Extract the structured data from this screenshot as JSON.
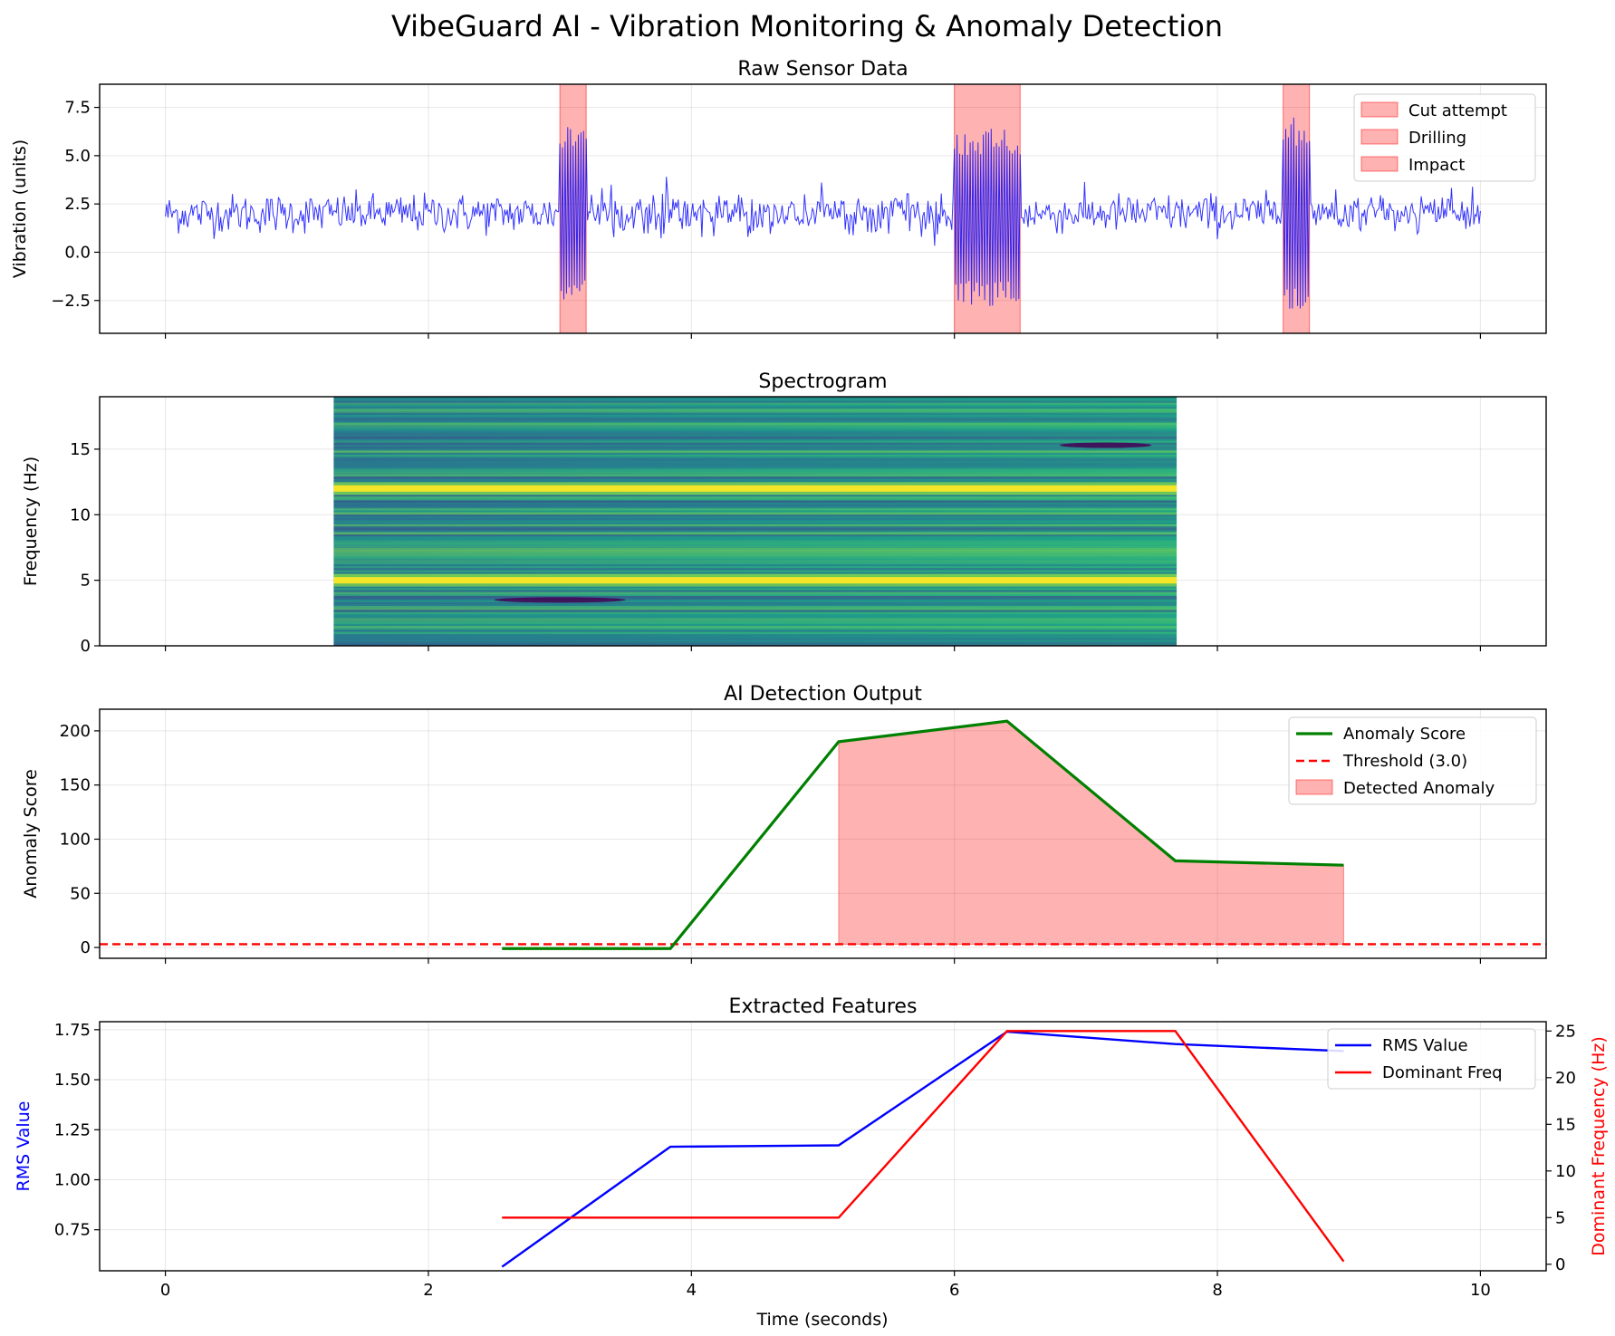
{
  "figure": {
    "suptitle": "VibeGuard AI - Vibration Monitoring & Anomaly Detection",
    "xlabel": "Time (seconds)",
    "xticks": [
      0,
      2,
      4,
      6,
      8,
      10
    ],
    "xlim": [
      -0.5,
      10.5
    ],
    "grid": true
  },
  "chart_data": [
    {
      "type": "line",
      "title": "Raw Sensor Data",
      "ylabel": "Vibration (units)",
      "ylim": [
        -4.2,
        8.7
      ],
      "yticks": [
        -2.5,
        0.0,
        2.5,
        5.0,
        7.5
      ],
      "ytick_labels": [
        "−2.5",
        "0.0",
        "2.5",
        "5.0",
        "7.5"
      ],
      "series": [
        {
          "description": "noisy baseline ~2 units, sampled 0-10 s",
          "color": "#0000ff",
          "x_start": 0,
          "x_end": 10,
          "baseline_mean": 2.0,
          "baseline_spread": 0.5,
          "bursts": [
            {
              "start": 3.0,
              "end": 3.2,
              "amplitude": 4.5,
              "center": 2.0
            },
            {
              "start": 6.0,
              "end": 6.5,
              "amplitude": 4.6,
              "center": 1.8
            },
            {
              "start": 8.5,
              "end": 8.7,
              "amplitude": 5.0,
              "center": 2.0
            }
          ]
        }
      ],
      "shaded_regions": [
        {
          "label": "Cut attempt",
          "start": 3.0,
          "end": 3.2,
          "color": "#ff0000",
          "alpha": 0.3
        },
        {
          "label": "Drilling",
          "start": 6.0,
          "end": 6.5,
          "color": "#ff0000",
          "alpha": 0.3
        },
        {
          "label": "Impact",
          "start": 8.5,
          "end": 8.7,
          "color": "#ff0000",
          "alpha": 0.3
        }
      ],
      "legend": {
        "position": "upper right",
        "entries": [
          "Cut attempt",
          "Drilling",
          "Impact"
        ]
      }
    },
    {
      "type": "heatmap",
      "title": "Spectrogram",
      "ylabel": "Frequency (Hz)",
      "ylim": [
        0,
        19
      ],
      "yticks": [
        0,
        5,
        10,
        15
      ],
      "ytick_labels": [
        "0",
        "5",
        "10",
        "15"
      ],
      "x_extent": [
        1.28,
        7.69
      ],
      "colormap": "viridis",
      "bright_bands_hz": [
        5.0,
        12.0
      ],
      "dark_spots": [
        {
          "freq": 15.3,
          "x_start": 6.8,
          "x_end": 7.5
        },
        {
          "freq": 3.5,
          "x_start": 2.5,
          "x_end": 3.5
        }
      ]
    },
    {
      "type": "line",
      "title": "AI Detection Output",
      "ylabel": "Anomaly Score",
      "ylim": [
        -10,
        220
      ],
      "yticks": [
        0,
        50,
        100,
        150,
        200
      ],
      "ytick_labels": [
        "0",
        "50",
        "100",
        "150",
        "200"
      ],
      "series": [
        {
          "name": "Anomaly Score",
          "color": "#008000",
          "x": [
            2.56,
            3.84,
            5.12,
            6.4,
            7.68,
            8.96
          ],
          "y": [
            -1,
            -1,
            190,
            209,
            80,
            76
          ]
        }
      ],
      "threshold": {
        "name": "Threshold (3.0)",
        "value": 3.0,
        "color": "#ff0000"
      },
      "fill": {
        "name": "Detected Anomaly",
        "x": [
          5.12,
          6.4,
          7.68,
          8.96
        ],
        "y": [
          190,
          209,
          80,
          76
        ],
        "color": "#ff0000",
        "alpha": 0.3
      },
      "legend": {
        "position": "upper right",
        "entries": [
          "Anomaly Score",
          "Threshold (3.0)",
          "Detected Anomaly"
        ]
      }
    },
    {
      "type": "line",
      "title": "Extracted Features",
      "ylabel": "RMS Value",
      "ylabel_color": "#0000ff",
      "ylim": [
        0.545,
        1.79
      ],
      "yticks": [
        0.75,
        1.0,
        1.25,
        1.5,
        1.75
      ],
      "ytick_labels": [
        "0.75",
        "1.00",
        "1.25",
        "1.50",
        "1.75"
      ],
      "ylabel_right": "Dominant Frequency (Hz)",
      "ylabel_right_color": "#ff0000",
      "ylim_right": [
        -0.7,
        26.0
      ],
      "yticks_right": [
        0,
        5,
        10,
        15,
        20,
        25
      ],
      "ytick_labels_right": [
        "0",
        "5",
        "10",
        "15",
        "20",
        "25"
      ],
      "series": [
        {
          "name": "RMS Value",
          "axis": "left",
          "color": "#0000ff",
          "x": [
            2.56,
            3.84,
            5.12,
            6.4,
            7.68,
            8.96
          ],
          "y": [
            0.565,
            1.165,
            1.172,
            1.74,
            1.678,
            1.643
          ]
        },
        {
          "name": "Dominant Freq",
          "axis": "right",
          "color": "#ff0000",
          "x": [
            2.56,
            3.84,
            5.12,
            6.4,
            7.68,
            8.96
          ],
          "y": [
            5.0,
            5.0,
            5.0,
            25.0,
            25.0,
            0.3
          ]
        }
      ],
      "legend": {
        "position": "upper right",
        "entries": [
          "RMS Value",
          "Dominant Freq"
        ]
      }
    }
  ]
}
